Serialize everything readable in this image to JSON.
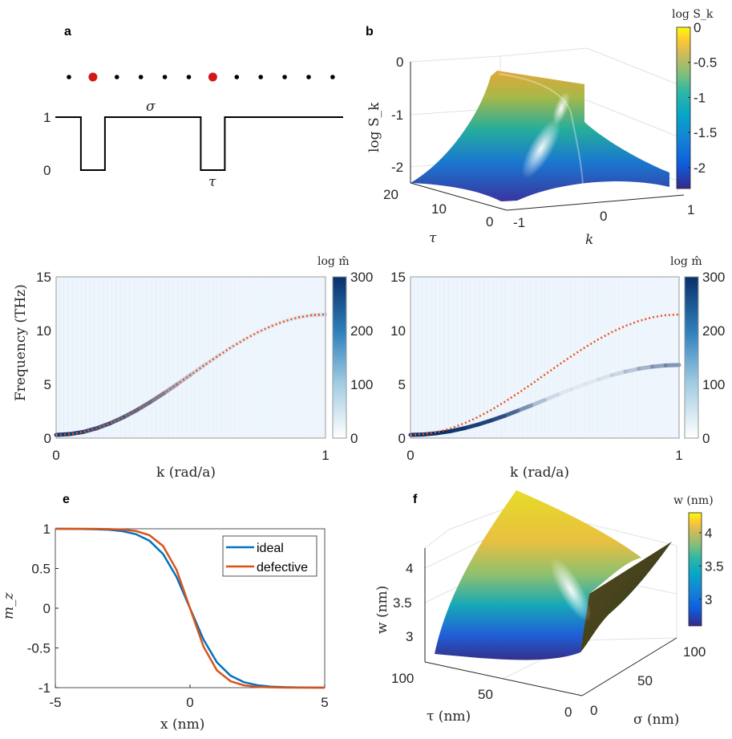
{
  "chart_data": [
    {
      "panel": "a",
      "type": "line",
      "dots": {
        "count": 12,
        "defect_positions": [
          2,
          7
        ],
        "colors": {
          "normal": "#000000",
          "defect": "#cc0000"
        }
      },
      "profile": {
        "levels": [
          0,
          1
        ],
        "well_centers": [
          2,
          7
        ]
      },
      "ytick_labels": [
        "1",
        "0"
      ],
      "annotations": {
        "high": "σ",
        "low": "τ"
      }
    },
    {
      "panel": "b",
      "type": "surface",
      "zlabel": "log S_k",
      "xlabel": "k",
      "ylabel": "τ",
      "zticks": [
        "0",
        "-1",
        "-2"
      ],
      "tau_ticks": [
        "20",
        "10",
        "0"
      ],
      "k_ticks": [
        "-1",
        "0",
        "1"
      ],
      "colorbar": {
        "title": "log S_k",
        "ticks": [
          "0",
          "-0.5",
          "-1",
          "-1.5",
          "-2"
        ],
        "range": [
          -2.3,
          0
        ],
        "colormap": "parula"
      }
    },
    {
      "panel": "c",
      "type": "heatmap",
      "xlabel": "k (rad/a)",
      "ylabel": "Frequency (THz)",
      "xlim": [
        0,
        1
      ],
      "ylim": [
        0,
        15
      ],
      "xticks": [
        "0",
        "1"
      ],
      "yticks": [
        "15",
        "10",
        "5",
        "0"
      ],
      "colorbar": {
        "title": "log m̂",
        "ticks": [
          "300",
          "200",
          "100",
          "0"
        ],
        "range": [
          0,
          300
        ],
        "colormap": "blues"
      },
      "k": [
        0,
        0.05,
        0.1,
        0.15,
        0.2,
        0.25,
        0.3,
        0.35,
        0.4,
        0.45,
        0.5,
        0.55,
        0.6,
        0.65,
        0.7,
        0.75,
        0.8,
        0.85,
        0.9,
        0.95,
        1
      ],
      "analytic_frequency": [
        0.3,
        0.37,
        0.57,
        0.91,
        1.37,
        1.94,
        2.61,
        3.36,
        4.17,
        5.02,
        5.9,
        6.78,
        7.63,
        8.44,
        9.19,
        9.86,
        10.43,
        10.89,
        11.23,
        11.43,
        11.5
      ],
      "band_frequency": [
        0.3,
        0.37,
        0.57,
        0.91,
        1.37,
        1.94,
        2.61,
        3.36,
        4.17,
        5.02,
        5.9,
        6.78,
        7.63,
        8.44,
        9.19,
        9.86,
        10.43,
        10.89,
        11.23,
        11.43,
        11.5
      ],
      "band_log_m": [
        300,
        290,
        280,
        270,
        260,
        250,
        240,
        230,
        200,
        150,
        110,
        80,
        60,
        50,
        45,
        40,
        40,
        45,
        55,
        70,
        90
      ],
      "colors": {
        "analytic": "#e8541f",
        "band": "#08306b"
      }
    },
    {
      "panel": "d",
      "type": "heatmap",
      "xlabel": "k (rad/a)",
      "xlim": [
        0,
        1
      ],
      "ylim": [
        0,
        15
      ],
      "xticks": [
        "0",
        "1"
      ],
      "yticks": [
        "15",
        "10",
        "5",
        "0"
      ],
      "colorbar": {
        "title": "log m̂",
        "ticks": [
          "300",
          "200",
          "100",
          "0"
        ],
        "range": [
          0,
          300
        ],
        "colormap": "blues"
      },
      "k": [
        0,
        0.05,
        0.1,
        0.15,
        0.2,
        0.25,
        0.3,
        0.35,
        0.4,
        0.45,
        0.5,
        0.55,
        0.6,
        0.65,
        0.7,
        0.75,
        0.8,
        0.85,
        0.9,
        0.95,
        1
      ],
      "analytic_frequency": [
        0.3,
        0.37,
        0.57,
        0.91,
        1.37,
        1.94,
        2.61,
        3.36,
        4.17,
        5.02,
        5.9,
        6.78,
        7.63,
        8.44,
        9.19,
        9.86,
        10.43,
        10.89,
        11.23,
        11.43,
        11.5
      ],
      "band_frequency": [
        0.3,
        0.34,
        0.46,
        0.65,
        0.92,
        1.25,
        1.64,
        2.07,
        2.55,
        3.04,
        3.55,
        4.06,
        4.55,
        5.03,
        5.46,
        5.85,
        6.18,
        6.45,
        6.64,
        6.76,
        6.8
      ],
      "band_log_m": [
        300,
        300,
        300,
        295,
        290,
        285,
        280,
        270,
        230,
        170,
        110,
        70,
        50,
        50,
        60,
        80,
        110,
        140,
        170,
        190,
        200
      ],
      "colors": {
        "analytic": "#e8541f",
        "band": "#08306b"
      }
    },
    {
      "panel": "e",
      "type": "line",
      "xlabel": "x (nm)",
      "ylabel": "m_z",
      "xlim": [
        -5,
        5
      ],
      "ylim": [
        -1,
        1
      ],
      "xticks": [
        "-5",
        "0",
        "5"
      ],
      "yticks": [
        "1",
        "0.5",
        "0",
        "-0.5",
        "-1"
      ],
      "legend": "top-right",
      "x": [
        -5,
        -4.5,
        -4,
        -3.5,
        -3,
        -2.5,
        -2,
        -1.5,
        -1,
        -0.5,
        0,
        0.5,
        1,
        1.5,
        2,
        2.5,
        3,
        3.5,
        4,
        4.5,
        5
      ],
      "series": [
        {
          "name": "ideal",
          "color": "#0072bd",
          "values": [
            1,
            0.999,
            0.997,
            0.994,
            0.987,
            0.969,
            0.931,
            0.848,
            0.682,
            0.394,
            0,
            -0.394,
            -0.682,
            -0.848,
            -0.931,
            -0.969,
            -0.987,
            -0.994,
            -0.997,
            -0.999,
            -1
          ]
        },
        {
          "name": "defective",
          "color": "#d95319",
          "values": [
            1,
            1,
            1,
            0.999,
            0.996,
            0.99,
            0.971,
            0.918,
            0.783,
            0.483,
            0,
            -0.483,
            -0.783,
            -0.918,
            -0.971,
            -0.99,
            -0.996,
            -0.999,
            -1,
            -1,
            -1
          ]
        }
      ]
    },
    {
      "panel": "f",
      "type": "surface",
      "zlabel": "w (nm)",
      "xlabel": "σ (nm)",
      "ylabel": "τ (nm)",
      "zticks": [
        "4",
        "3.5",
        "3"
      ],
      "tau_ticks": [
        "100",
        "50",
        "0"
      ],
      "sigma_ticks": [
        "0",
        "50",
        "100"
      ],
      "colorbar": {
        "title": "w (nm)",
        "ticks": [
          "4",
          "3.5",
          "3"
        ],
        "range": [
          2.6,
          4.3
        ],
        "colormap": "parula"
      }
    }
  ],
  "panel_labels": [
    "a",
    "b",
    "c",
    "d",
    "e",
    "f"
  ]
}
